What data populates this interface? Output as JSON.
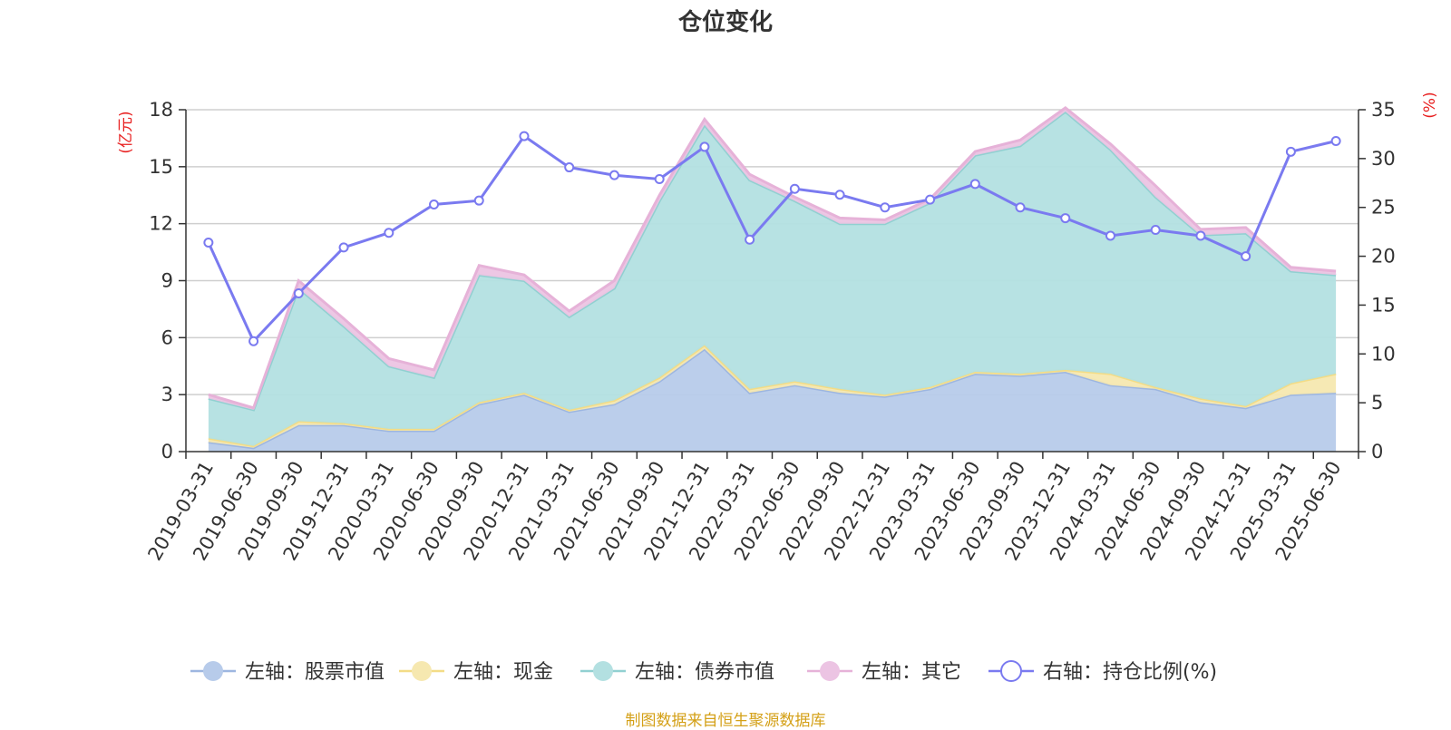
{
  "chart_data": {
    "type": "area",
    "title": "仓位变化",
    "left_axis": {
      "unit_label": "(亿元)",
      "range": [
        0,
        18
      ],
      "ticks": [
        "0",
        "3",
        "6",
        "9",
        "12",
        "15",
        "18"
      ]
    },
    "right_axis": {
      "unit_label": "(%)",
      "range": [
        0,
        35
      ],
      "ticks": [
        "0",
        "5",
        "10",
        "15",
        "20",
        "25",
        "30",
        "35"
      ]
    },
    "categories": [
      "2019-03-31",
      "2019-06-30",
      "2019-09-30",
      "2019-12-31",
      "2020-03-31",
      "2020-06-30",
      "2020-09-30",
      "2020-12-31",
      "2021-03-31",
      "2021-06-30",
      "2021-09-30",
      "2021-12-31",
      "2022-03-31",
      "2022-06-30",
      "2022-09-30",
      "2022-12-31",
      "2023-03-31",
      "2023-06-30",
      "2023-09-30",
      "2023-12-31",
      "2024-03-31",
      "2024-06-30",
      "2024-09-30",
      "2024-12-31",
      "2025-03-31",
      "2025-06-30"
    ],
    "series": [
      {
        "name": "左轴：股票市值",
        "axis": "left",
        "kind": "stacked-area",
        "color": "#9db6e0",
        "fill": "#b7cbea",
        "values": [
          0.5,
          0.2,
          1.4,
          1.4,
          1.1,
          1.1,
          2.5,
          3.0,
          2.1,
          2.5,
          3.7,
          5.4,
          3.1,
          3.5,
          3.1,
          2.9,
          3.3,
          4.1,
          4.0,
          4.2,
          3.5,
          3.3,
          2.6,
          2.3,
          3.0,
          3.1
        ]
      },
      {
        "name": "左轴：现金",
        "axis": "left",
        "kind": "stacked-area",
        "color": "#f3dc86",
        "fill": "#f6e8b0",
        "values": [
          0.2,
          0.1,
          0.2,
          0.1,
          0.1,
          0.1,
          0.1,
          0.1,
          0.1,
          0.2,
          0.2,
          0.2,
          0.2,
          0.2,
          0.2,
          0.1,
          0.1,
          0.1,
          0.1,
          0.1,
          0.6,
          0.1,
          0.2,
          0.1,
          0.6,
          1.0
        ]
      },
      {
        "name": "左轴：债券市值",
        "axis": "left",
        "kind": "stacked-area",
        "color": "#91d0d1",
        "fill": "#b3e0e1",
        "values": [
          2.1,
          1.9,
          7.0,
          5.1,
          3.3,
          2.7,
          6.7,
          5.9,
          4.9,
          5.9,
          9.3,
          11.6,
          11.0,
          9.5,
          8.7,
          9.0,
          9.7,
          11.4,
          12.0,
          13.6,
          11.8,
          10.0,
          8.6,
          9.1,
          5.9,
          5.2
        ]
      },
      {
        "name": "左轴：其它",
        "axis": "left",
        "kind": "stacked-area",
        "color": "#e6b2d8",
        "fill": "#ecc4e3",
        "values": [
          0.2,
          0.1,
          0.4,
          0.4,
          0.4,
          0.4,
          0.5,
          0.3,
          0.3,
          0.4,
          0.3,
          0.3,
          0.3,
          0.2,
          0.3,
          0.2,
          0.2,
          0.2,
          0.3,
          0.2,
          0.3,
          0.6,
          0.3,
          0.3,
          0.2,
          0.2
        ]
      },
      {
        "name": "右轴：持仓比例(%)",
        "axis": "right",
        "kind": "line",
        "color": "#7a7af0",
        "values": [
          21.4,
          11.3,
          16.2,
          20.9,
          22.4,
          25.3,
          25.7,
          32.3,
          29.1,
          28.3,
          27.9,
          31.2,
          21.7,
          26.9,
          26.3,
          25.0,
          25.8,
          27.4,
          25.0,
          23.9,
          22.1,
          22.7,
          22.1,
          20.0,
          30.7,
          31.8
        ]
      }
    ],
    "grid": true,
    "legend_position": "bottom"
  },
  "source_note": "制图数据来自恒生聚源数据库"
}
